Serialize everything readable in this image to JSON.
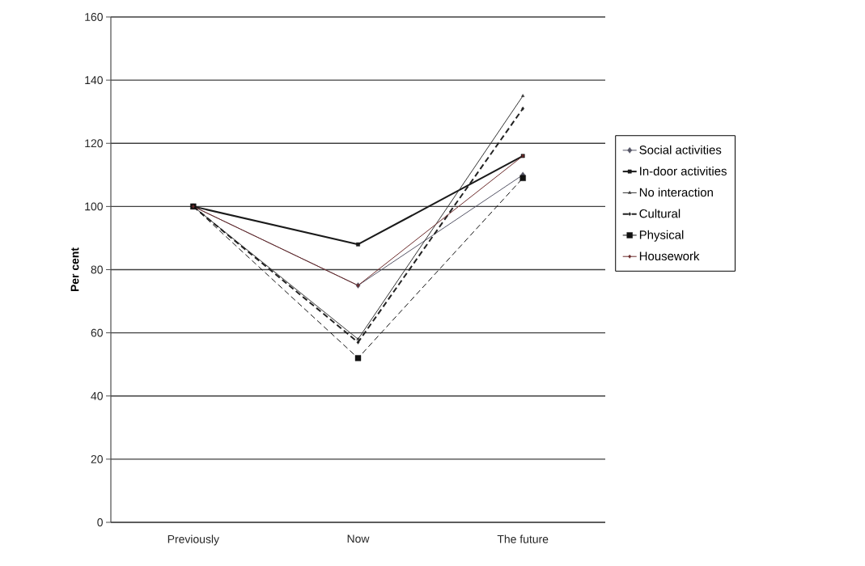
{
  "chart_data": {
    "type": "line",
    "ylabel": "Per cent",
    "categories": [
      "Previously",
      "Now",
      "The future"
    ],
    "series": [
      {
        "name": "Social activities",
        "color": "#555566",
        "values": [
          100,
          75,
          110
        ],
        "marker": "diamond",
        "line_style": "solid"
      },
      {
        "name": "In-door activities",
        "color": "#1a1a1a",
        "values": [
          100,
          88,
          116
        ],
        "marker": "square",
        "line_style": "solid"
      },
      {
        "name": "No interaction",
        "color": "#333333",
        "values": [
          100,
          58,
          135
        ],
        "marker": "triangle",
        "line_style": "solid"
      },
      {
        "name": "Cultural",
        "color": "#222222",
        "values": [
          100,
          57,
          131
        ],
        "marker": "diamond",
        "line_style": "dashed"
      },
      {
        "name": "Physical",
        "color": "#111111",
        "values": [
          100,
          52,
          109
        ],
        "marker": "square",
        "line_style": "dashed"
      },
      {
        "name": "Housework",
        "color": "#6b2a2a",
        "values": [
          100,
          75,
          116
        ],
        "marker": "diamond",
        "line_style": "solid"
      }
    ],
    "ylim": [
      0,
      160
    ],
    "yticks": [
      0,
      20,
      40,
      60,
      80,
      100,
      120,
      140,
      160
    ],
    "grid": "y",
    "legend": "right"
  }
}
